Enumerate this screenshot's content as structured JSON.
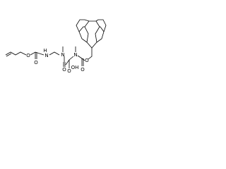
{
  "molecule": {
    "atoms": [
      {
        "label": "O"
      },
      {
        "label": "O"
      },
      {
        "label": "H"
      },
      {
        "label": "N"
      },
      {
        "label": "N"
      },
      {
        "label": "O"
      },
      {
        "label": "N"
      },
      {
        "label": "O"
      },
      {
        "label": "OH"
      },
      {
        "label": "O"
      },
      {
        "label": "O"
      }
    ]
  }
}
